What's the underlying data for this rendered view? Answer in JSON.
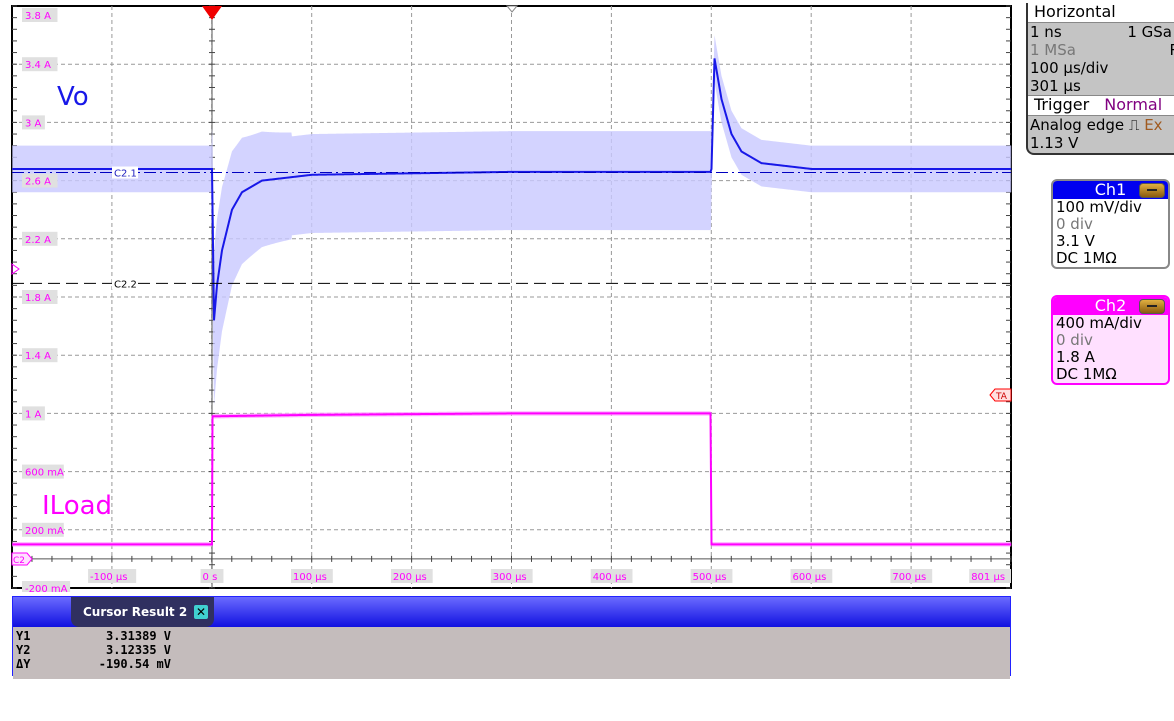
{
  "chart_data": {
    "type": "line",
    "x_unit": "µs",
    "xlim": [
      -200,
      800
    ],
    "x_tick_labels": [
      "-100 µs",
      "0 s",
      "100 µs",
      "200 µs",
      "300 µs",
      "400 µs",
      "500 µs",
      "600 µs",
      "700 µs",
      "801 µs"
    ],
    "x_tick_values": [
      -100,
      0,
      100,
      200,
      300,
      400,
      500,
      600,
      700,
      801
    ],
    "y_tick_labels": [
      "3.8 A",
      "3.4 A",
      "3 A",
      "2.6 A",
      "2.2 A",
      "1.8 A",
      "1.4 A",
      "1 A",
      "600 mA",
      "200 mA",
      "-200 mA"
    ],
    "y_tick_values": [
      3.8,
      3.4,
      3.0,
      2.6,
      2.2,
      1.8,
      1.4,
      1.0,
      0.6,
      0.2,
      -0.2
    ],
    "grid": true,
    "series": [
      {
        "name": "Vo",
        "channel": "Ch1",
        "unit": "V",
        "color": "#1818e8",
        "band_color": "#c8c8ff",
        "x": [
          -200,
          0,
          2,
          5,
          10,
          20,
          30,
          50,
          100,
          300,
          499,
          500,
          503,
          510,
          520,
          530,
          550,
          600,
          800
        ],
        "y": [
          3.32,
          3.32,
          3.06,
          3.12,
          3.18,
          3.25,
          3.28,
          3.3,
          3.31,
          3.315,
          3.315,
          3.32,
          3.51,
          3.44,
          3.38,
          3.35,
          3.33,
          3.32,
          3.32
        ]
      },
      {
        "name": "ILoad",
        "channel": "Ch2",
        "unit": "A",
        "color": "#ff00ff",
        "band_color": "#ffa0ff",
        "x": [
          -200,
          0,
          0.5,
          100,
          300,
          499,
          500,
          800
        ],
        "y": [
          0.1,
          0.1,
          0.98,
          0.99,
          1.0,
          1.0,
          0.1,
          0.1
        ]
      }
    ],
    "cursors": [
      {
        "label": "C2.1",
        "value_V": 3.31389,
        "style": "dash-dot",
        "color": "#0000c0"
      },
      {
        "label": "C2.2",
        "value_V": 3.12335,
        "style": "dashed",
        "color": "#000000"
      }
    ],
    "markers": {
      "ch2_marker": "C2",
      "trigger_marker": "TA"
    }
  },
  "horizontal": {
    "title": "Horizontal",
    "resolution": "1 ns",
    "sample_rate": "1 GSa",
    "record": "1 MSa",
    "mode": "RT",
    "scale": "100 µs/div",
    "position": "301 µs"
  },
  "trigger": {
    "title": "Trigger",
    "mode": "Normal",
    "type": "Analog edge",
    "source": "Ex",
    "level": "1.13 V",
    "edge_icon": "rising-edge-icon"
  },
  "ch1": {
    "title": "Ch1",
    "scale": "100 mV/div",
    "offset_div": "0 div",
    "offset": "3.1 V",
    "coupling": "DC 1MΩ",
    "color": "#0000f0"
  },
  "ch2": {
    "title": "Ch2",
    "scale": "400 mA/div",
    "offset_div": "0 div",
    "offset": "1.8 A",
    "coupling": "DC 1MΩ",
    "color": "#ff00ff"
  },
  "cursor_result": {
    "title": "Cursor Result 2",
    "close": "✕",
    "rows": [
      {
        "label": "Y1",
        "value": "3.31389 V"
      },
      {
        "label": "Y2",
        "value": "3.12335 V"
      },
      {
        "label": "ΔY",
        "value": "-190.54 mV"
      }
    ]
  }
}
